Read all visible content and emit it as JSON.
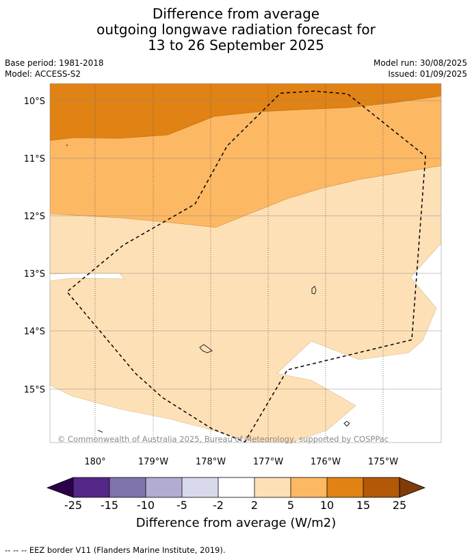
{
  "title": {
    "line1": "Difference from average",
    "line2": "outgoing longwave radiation forecast for",
    "line3": "13 to 26 September 2025"
  },
  "meta": {
    "base_period": "Base period: 1981-2018",
    "model": "Model: ACCESS-S2",
    "model_run": "Model run: 30/08/2025",
    "issued": "Issued: 01/09/2025"
  },
  "map": {
    "lat_labels": [
      "10°S",
      "11°S",
      "12°S",
      "13°S",
      "14°S",
      "15°S"
    ],
    "lon_labels": [
      "180°",
      "179°W",
      "178°W",
      "177°W",
      "176°W",
      "175°W"
    ],
    "copyright": "© Commonwealth of Australia 2025, Bureau of Meteorology, supported by COSPPac",
    "colors": {
      "band_10_15": "#e08214",
      "band_5_10": "#fdb863",
      "band_2_5": "#fee0b6",
      "band_neutral": "#ffffff"
    }
  },
  "colorbar": {
    "ticks": [
      "-25",
      "-15",
      "-10",
      "-5",
      "-2",
      "2",
      "5",
      "10",
      "15",
      "25"
    ],
    "colors": [
      "#2d004b",
      "#542788",
      "#8073ac",
      "#b2abd2",
      "#d8daeb",
      "#ffffff",
      "#fee0b6",
      "#fdb863",
      "#e08214",
      "#b35806",
      "#7f3b08"
    ],
    "label": "Difference from average (W/m2)"
  },
  "legend": {
    "eez_note": "--  --  -- EEZ border V11 (Flanders Marine Institute, 2019)."
  }
}
